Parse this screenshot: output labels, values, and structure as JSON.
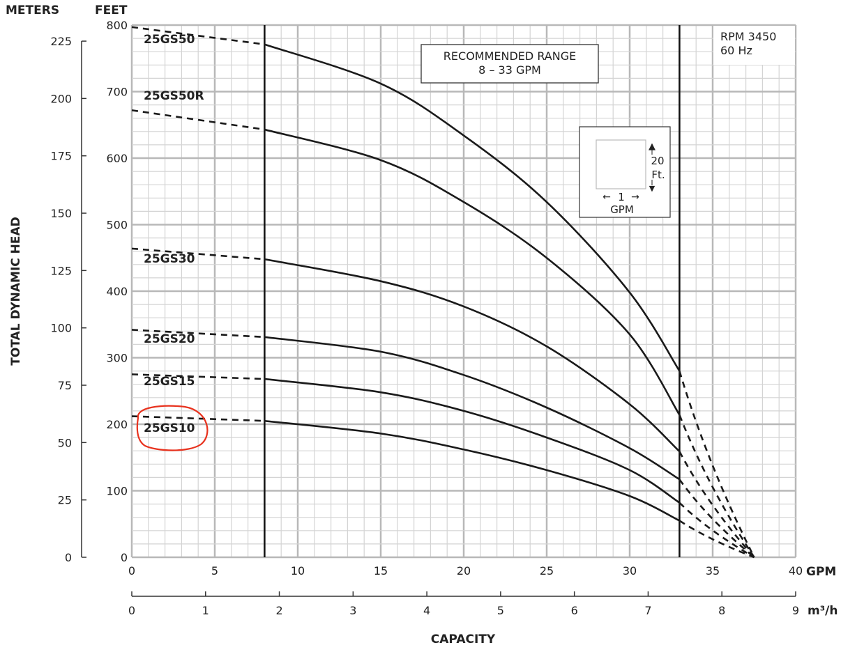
{
  "chart_data": {
    "type": "line",
    "xlabel": "CAPACITY",
    "ylabel": "TOTAL DYNAMIC HEAD",
    "x_unit_primary": "GPM",
    "x_unit_secondary": "m³/h",
    "y_unit_primary": "FEET",
    "y_unit_secondary": "METERS",
    "xlim": [
      0,
      40
    ],
    "xlim_secondary": [
      0,
      9
    ],
    "ylim": [
      0,
      800
    ],
    "ylim_secondary": [
      0,
      232
    ],
    "x_ticks": [
      "0",
      "5",
      "10",
      "15",
      "20",
      "25",
      "30",
      "35",
      "40"
    ],
    "x_ticks_secondary": [
      "0",
      "1",
      "2",
      "3",
      "4",
      "5",
      "6",
      "7",
      "8",
      "9"
    ],
    "y_ticks": [
      "0",
      "100",
      "200",
      "300",
      "400",
      "500",
      "600",
      "700",
      "800"
    ],
    "y_ticks_secondary": [
      "0",
      "25",
      "50",
      "75",
      "100",
      "125",
      "150",
      "175",
      "200",
      "225"
    ],
    "grid": true,
    "recommended_range": {
      "label_line1": "RECOMMENDED RANGE",
      "label_line2": "8 – 33 GPM",
      "min_gpm": 8,
      "max_gpm": 33
    },
    "info": {
      "rpm": "RPM 3450",
      "hz": "60 Hz"
    },
    "scale_key": {
      "vertical": "20",
      "vertical_unit": "Ft.",
      "horizontal": "1",
      "horizontal_unit": "GPM"
    },
    "highlight": {
      "series": "25GS10",
      "color": "#e8321e"
    },
    "x": [
      0,
      8,
      15,
      20,
      25,
      30,
      33,
      37.5
    ],
    "series": [
      {
        "name": "25GS50",
        "values": [
          797,
          771,
          712,
          634,
          534,
          398,
          280,
          0
        ]
      },
      {
        "name": "25GS50R",
        "values": [
          672,
          643,
          597,
          534,
          450,
          335,
          214,
          0
        ]
      },
      {
        "name": "25GS30",
        "values": [
          464,
          448,
          415,
          377,
          317,
          230,
          159,
          0
        ]
      },
      {
        "name": "25GS20",
        "values": [
          342,
          331,
          309,
          274,
          225,
          164,
          117,
          0
        ]
      },
      {
        "name": "25GS15",
        "values": [
          275,
          268,
          248,
          220,
          180,
          131,
          82,
          0
        ]
      },
      {
        "name": "25GS10",
        "values": [
          212,
          205,
          186,
          162,
          131,
          92,
          55,
          0
        ]
      }
    ]
  }
}
